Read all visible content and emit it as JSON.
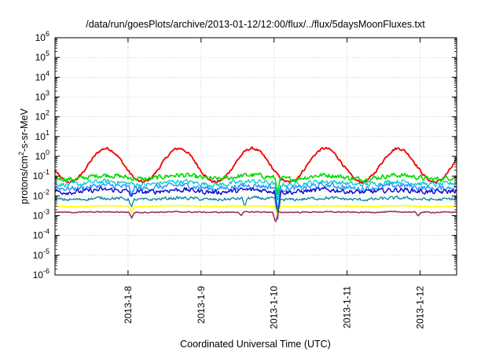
{
  "chart_data": {
    "type": "line",
    "title": "/data/run/goesPlots/archive/2013-01-12/12:00/flux/../flux/5daysMoonFluxes.txt",
    "xlabel": "Coordinated Universal Time (UTC)",
    "ylabel": "protons/cm²-s-sr-MeV",
    "y_scale": "log",
    "ylim_exponents": [
      -6,
      6
    ],
    "y_ticks": [
      {
        "base": "10",
        "exp": "-6",
        "value": -6
      },
      {
        "base": "10",
        "exp": "-5",
        "value": -5
      },
      {
        "base": "10",
        "exp": "-4",
        "value": -4
      },
      {
        "base": "10",
        "exp": "-3",
        "value": -3
      },
      {
        "base": "10",
        "exp": "-2",
        "value": -2
      },
      {
        "base": "10",
        "exp": "-1",
        "value": -1
      },
      {
        "base": "10",
        "exp": "0",
        "value": 0
      },
      {
        "base": "10",
        "exp": "1",
        "value": 1
      },
      {
        "base": "10",
        "exp": "2",
        "value": 2
      },
      {
        "base": "10",
        "exp": "3",
        "value": 3
      },
      {
        "base": "10",
        "exp": "4",
        "value": 4
      },
      {
        "base": "10",
        "exp": "5",
        "value": 5
      },
      {
        "base": "10",
        "exp": "6",
        "value": 6
      }
    ],
    "x_range_days": [
      0,
      5.5
    ],
    "x_ticks": [
      {
        "label": "2013-1-8",
        "day": 1
      },
      {
        "label": "2013-1-9",
        "day": 2
      },
      {
        "label": "2013-1-10",
        "day": 3
      },
      {
        "label": "2013-1-11",
        "day": 4
      },
      {
        "label": "2013-1-12",
        "day": 5
      }
    ],
    "grid": true,
    "series": [
      {
        "color": "#ee0000",
        "width": 1.8,
        "base": -0.45,
        "amp": 0.85,
        "period": 1.0,
        "phase": 0.45,
        "noise": 0.1,
        "dips": []
      },
      {
        "color": "#00dd00",
        "width": 1.6,
        "base": -1.05,
        "amp": 0.1,
        "period": 1.0,
        "phase": 0.45,
        "noise": 0.18,
        "dips": [
          [
            3.05,
            0.7
          ]
        ]
      },
      {
        "color": "#00cccc",
        "width": 1.3,
        "base": -1.35,
        "amp": 0.08,
        "period": 1.0,
        "phase": 0.45,
        "noise": 0.18,
        "dips": [
          [
            3.05,
            0.9
          ]
        ]
      },
      {
        "color": "#3399ff",
        "width": 1.5,
        "base": -1.55,
        "amp": 0.08,
        "period": 1.0,
        "phase": 0.45,
        "noise": 0.2,
        "dips": [
          [
            3.05,
            1.1
          ],
          [
            1.05,
            0.3
          ]
        ]
      },
      {
        "color": "#1111cc",
        "width": 1.5,
        "base": -1.75,
        "amp": 0.06,
        "period": 1.0,
        "phase": 0.45,
        "noise": 0.18,
        "dips": [
          [
            3.05,
            1.2
          ],
          [
            1.05,
            0.3
          ]
        ]
      },
      {
        "color": "#008899",
        "width": 1.3,
        "base": -2.15,
        "amp": 0.04,
        "period": 1.0,
        "phase": 0.45,
        "noise": 0.12,
        "dips": [
          [
            3.05,
            1.0
          ],
          [
            1.05,
            0.4
          ],
          [
            2.6,
            0.4
          ]
        ]
      },
      {
        "color": "#ffff00",
        "width": 1.6,
        "base": -2.52,
        "amp": 0.02,
        "period": 1.0,
        "phase": 0.45,
        "noise": 0.03,
        "dips": [
          [
            3.05,
            0.5
          ],
          [
            1.05,
            0.3
          ]
        ]
      },
      {
        "color": "#993366",
        "width": 1.6,
        "base": -2.82,
        "amp": 0.01,
        "period": 1.0,
        "phase": 0.45,
        "noise": 0.04,
        "dips": [
          [
            3.02,
            0.55
          ],
          [
            1.05,
            0.28
          ],
          [
            2.55,
            0.2
          ],
          [
            4.97,
            0.2
          ]
        ]
      }
    ]
  }
}
